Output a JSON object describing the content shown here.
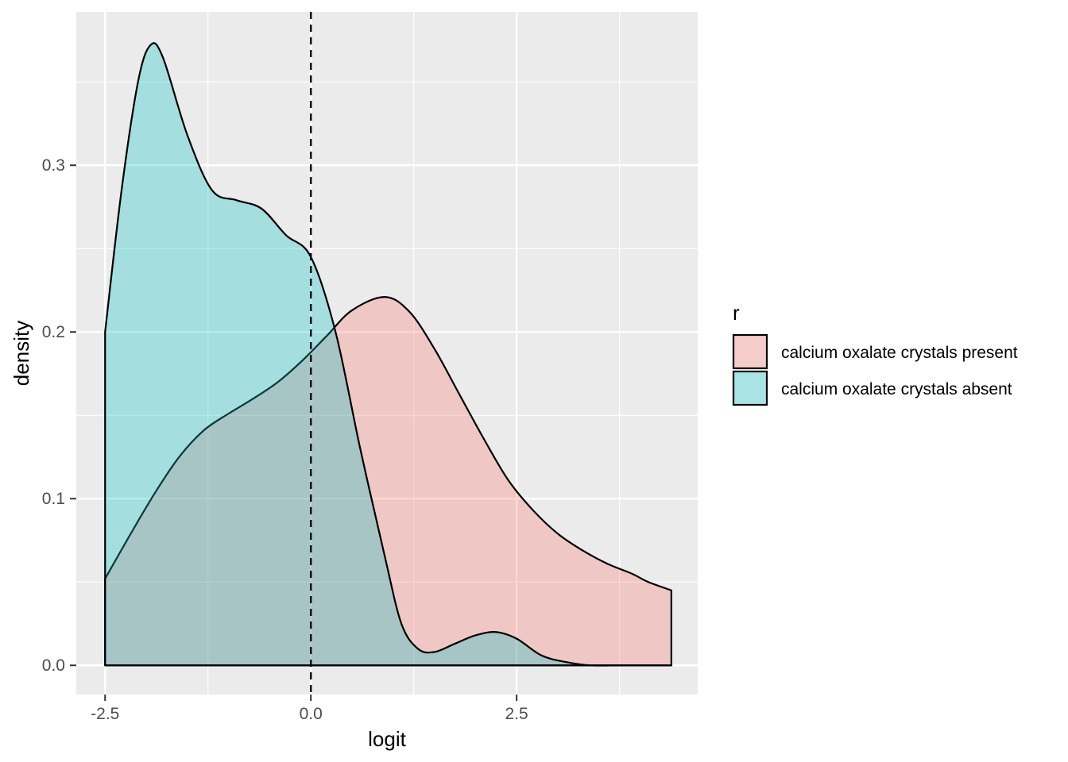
{
  "chart_data": {
    "type": "area",
    "subtype": "density",
    "title": "",
    "xlabel": "logit",
    "ylabel": "density",
    "xlim": [
      -2.85,
      4.7
    ],
    "ylim": [
      -0.0175,
      0.392
    ],
    "x_ticks": [
      -2.5,
      0.0,
      2.5
    ],
    "x_tick_labels": [
      "-2.5",
      "0.0",
      "2.5"
    ],
    "y_ticks": [
      0.0,
      0.1,
      0.2,
      0.3
    ],
    "y_tick_labels": [
      "0.0",
      "0.1",
      "0.2",
      "0.3"
    ],
    "grid": true,
    "reference_line": {
      "x": 0.0,
      "style": "dashed",
      "color": "#000000"
    },
    "legend": {
      "title": "r",
      "position": "right",
      "entries": [
        "calcium oxalate crystals present",
        "calcium oxalate crystals absent"
      ]
    },
    "series": [
      {
        "name": "calcium oxalate crystals present",
        "color": "#F8766D",
        "points": [
          [
            -2.5,
            0.052
          ],
          [
            -2.2,
            0.078
          ],
          [
            -1.9,
            0.103
          ],
          [
            -1.6,
            0.125
          ],
          [
            -1.3,
            0.141
          ],
          [
            -1.0,
            0.151
          ],
          [
            -0.7,
            0.16
          ],
          [
            -0.4,
            0.17
          ],
          [
            -0.1,
            0.183
          ],
          [
            0.2,
            0.198
          ],
          [
            0.5,
            0.213
          ],
          [
            0.9,
            0.221
          ],
          [
            1.2,
            0.212
          ],
          [
            1.5,
            0.19
          ],
          [
            1.8,
            0.163
          ],
          [
            2.1,
            0.136
          ],
          [
            2.4,
            0.111
          ],
          [
            2.7,
            0.093
          ],
          [
            3.0,
            0.079
          ],
          [
            3.3,
            0.069
          ],
          [
            3.6,
            0.061
          ],
          [
            3.9,
            0.055
          ],
          [
            4.1,
            0.05
          ],
          [
            4.38,
            0.045
          ]
        ]
      },
      {
        "name": "calcium oxalate crystals absent",
        "color": "#00BFC4",
        "points": [
          [
            -2.5,
            0.2
          ],
          [
            -2.3,
            0.285
          ],
          [
            -2.1,
            0.35
          ],
          [
            -1.95,
            0.372
          ],
          [
            -1.8,
            0.365
          ],
          [
            -1.5,
            0.318
          ],
          [
            -1.2,
            0.285
          ],
          [
            -0.9,
            0.279
          ],
          [
            -0.6,
            0.274
          ],
          [
            -0.3,
            0.258
          ],
          [
            0.0,
            0.245
          ],
          [
            0.3,
            0.2
          ],
          [
            0.6,
            0.13
          ],
          [
            0.9,
            0.065
          ],
          [
            1.1,
            0.025
          ],
          [
            1.3,
            0.01
          ],
          [
            1.5,
            0.008
          ],
          [
            1.75,
            0.013
          ],
          [
            2.0,
            0.018
          ],
          [
            2.25,
            0.02
          ],
          [
            2.5,
            0.016
          ],
          [
            2.8,
            0.006
          ],
          [
            3.1,
            0.002
          ],
          [
            3.4,
            0.0
          ],
          [
            3.8,
            0.0
          ],
          [
            4.38,
            0.0
          ]
        ]
      }
    ]
  }
}
